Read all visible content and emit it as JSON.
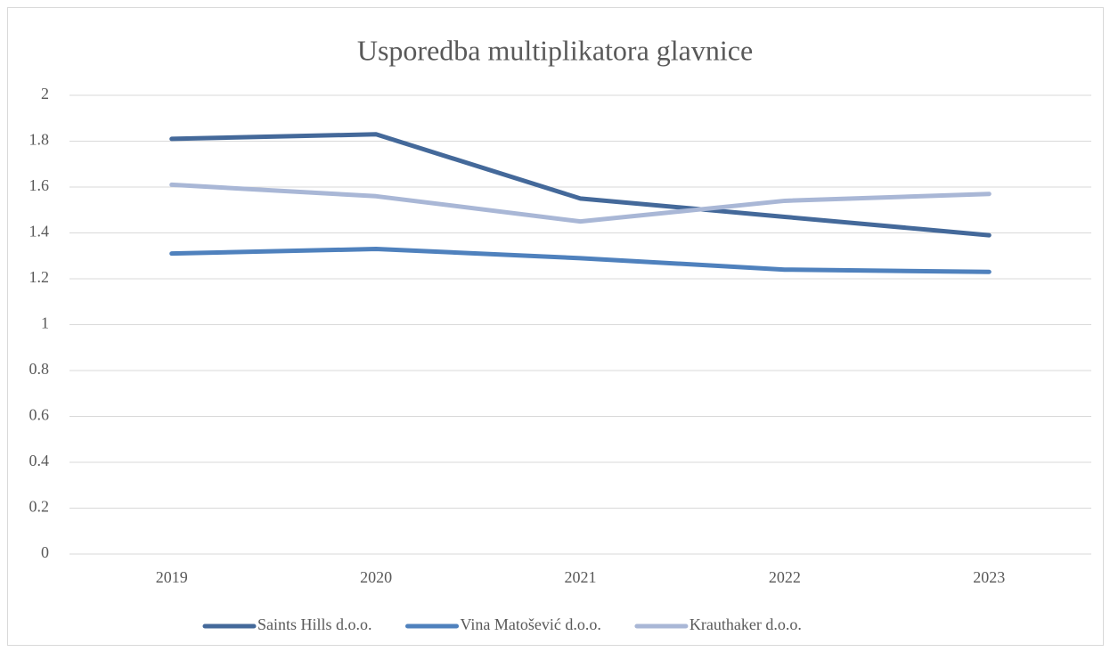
{
  "chart_data": {
    "type": "line",
    "title": "Usporedba multiplikatora glavnice",
    "categories": [
      "2019",
      "2020",
      "2021",
      "2022",
      "2023"
    ],
    "series": [
      {
        "name": "Saints Hills d.o.o.",
        "color": "#44699a",
        "values": [
          1.81,
          1.83,
          1.55,
          1.47,
          1.39
        ]
      },
      {
        "name": "Vina Matošević d.o.o.",
        "color": "#4f81bd",
        "values": [
          1.31,
          1.33,
          1.29,
          1.24,
          1.23
        ]
      },
      {
        "name": "Krauthaker d.o.o.",
        "color": "#a9b7d6",
        "values": [
          1.61,
          1.56,
          1.45,
          1.54,
          1.57
        ]
      }
    ],
    "ylim": [
      0,
      2
    ],
    "yticks": [
      0,
      0.2,
      0.4,
      0.6,
      0.8,
      1,
      1.2,
      1.4,
      1.6,
      1.8,
      2
    ],
    "grid": true,
    "legend": "bottom"
  }
}
